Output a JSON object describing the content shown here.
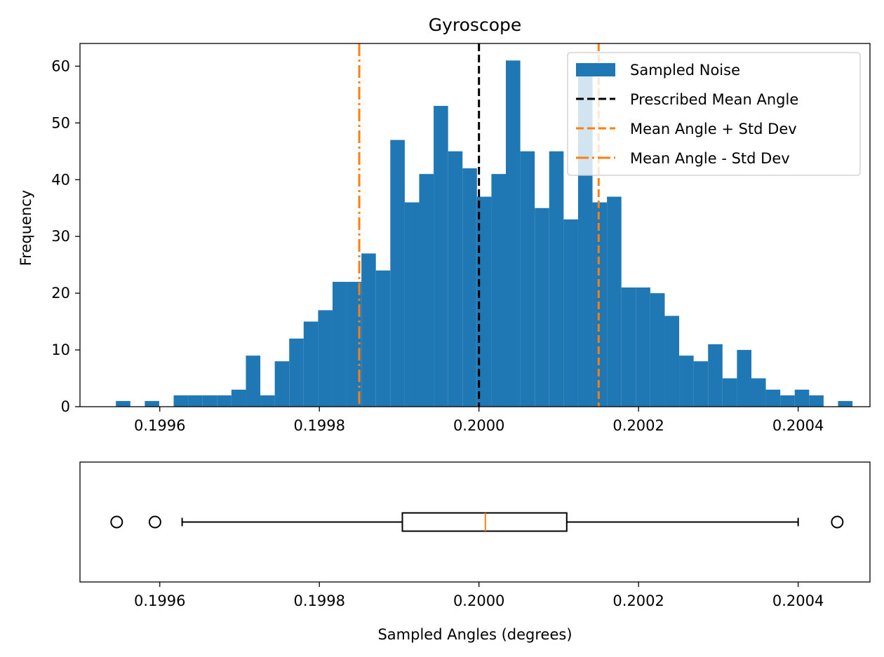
{
  "chart_data": [
    {
      "type": "histogram",
      "title": "Gyroscope",
      "xlabel": "",
      "ylabel": "Frequency",
      "xlim": [
        0.1995,
        0.20049
      ],
      "ylim": [
        0,
        64
      ],
      "x_ticks": [
        0.1996,
        0.1998,
        0.2,
        0.2002,
        0.2004
      ],
      "x_tick_labels": [
        "0.1996",
        "0.1998",
        "0.2000",
        "0.2002",
        "0.2004"
      ],
      "y_ticks": [
        0,
        10,
        20,
        30,
        40,
        50,
        60
      ],
      "y_tick_labels": [
        "0",
        "10",
        "20",
        "30",
        "40",
        "50",
        "60"
      ],
      "bin_start": 0.199545,
      "bin_width": 1.81e-05,
      "counts": [
        1,
        0,
        1,
        0,
        2,
        2,
        2,
        2,
        3,
        9,
        2,
        8,
        12,
        15,
        17,
        22,
        22,
        27,
        24,
        47,
        36,
        41,
        53,
        45,
        42,
        37,
        41,
        61,
        45,
        35,
        45,
        33,
        60,
        36,
        37,
        21,
        21,
        20,
        16,
        9,
        8,
        11,
        5,
        10,
        5,
        3,
        2,
        3,
        2,
        0,
        1
      ],
      "bar_color": "#1f77b4",
      "reference_lines": [
        {
          "name": "Prescribed Mean Angle",
          "x": 0.2,
          "color": "#000000",
          "style": "dashed"
        },
        {
          "name": "Mean Angle + Std Dev",
          "x": 0.20015,
          "color": "#ff7f0e",
          "style": "dashed"
        },
        {
          "name": "Mean Angle - Std Dev",
          "x": 0.19985,
          "color": "#ff7f0e",
          "style": "dashdot"
        }
      ],
      "legend": {
        "placement": "upper right",
        "entries": [
          {
            "label": "Sampled Noise",
            "kind": "patch",
            "color": "#1f77b4"
          },
          {
            "label": "Prescribed Mean Angle",
            "kind": "line",
            "color": "#000000",
            "style": "dashed"
          },
          {
            "label": "Mean Angle + Std Dev",
            "kind": "line",
            "color": "#ff7f0e",
            "style": "dashed"
          },
          {
            "label": "Mean Angle - Std Dev",
            "kind": "line",
            "color": "#ff7f0e",
            "style": "dashdot"
          }
        ]
      },
      "grid": false
    },
    {
      "type": "boxplot",
      "orientation": "horizontal",
      "xlabel": "Sampled Angles (degrees)",
      "xlim": [
        0.1995,
        0.20049
      ],
      "x_ticks": [
        0.1996,
        0.1998,
        0.2,
        0.2002,
        0.2004
      ],
      "x_tick_labels": [
        "0.1996",
        "0.1998",
        "0.2000",
        "0.2002",
        "0.2004"
      ],
      "whisker_low": 0.199628,
      "q1": 0.199904,
      "median": 0.200008,
      "q3": 0.20011,
      "whisker_high": 0.2004,
      "outliers": [
        0.199546,
        0.199594,
        0.200449
      ],
      "median_color": "#ff7f0e",
      "grid": false
    }
  ]
}
